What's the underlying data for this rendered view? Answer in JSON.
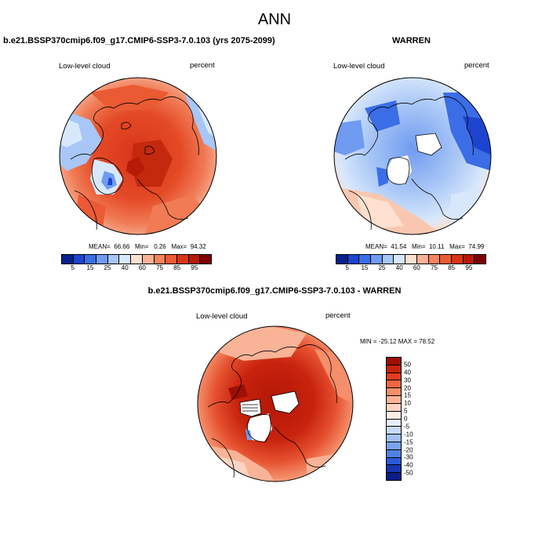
{
  "figure": {
    "title": "ANN",
    "panel_top_left": {
      "case_title": "b.e21.BSSP370cmip6.f09_g17.CMIP6-SSP3-7.0.103 (yrs 2075-2099)",
      "variable": "Low-level cloud",
      "units": "percent",
      "mean_label": "MEAN=",
      "mean": "66.66",
      "min_label": "Min=",
      "min": "0.26",
      "max_label": "Max=",
      "max": "94.32"
    },
    "panel_top_right": {
      "case_title": "WARREN",
      "variable": "Low-level cloud",
      "units": "percent",
      "mean_label": "MEAN=",
      "mean": "41.54",
      "min_label": "Min=",
      "min": "10.11",
      "max_label": "Max=",
      "max": "74.99"
    },
    "panel_bottom": {
      "case_title": "b.e21.BSSP370cmip6.f09_g17.CMIP6-SSP3-7.0.103 - WARREN",
      "variable": "Low-level cloud",
      "units": "percent",
      "minmax_text": "MIN = -25.12 MAX = 78.52"
    },
    "colorbar_abs": {
      "ticks": [
        "5",
        "15",
        "25",
        "40",
        "60",
        "75",
        "85",
        "95"
      ],
      "colors": [
        "#08218c",
        "#1d44cf",
        "#3a6de6",
        "#6f9bf0",
        "#a8c6f6",
        "#d8e8fc",
        "#fde0d0",
        "#f9b195",
        "#f3845f",
        "#ec5a35",
        "#d93516",
        "#b81a08",
        "#7f0000"
      ]
    },
    "colorbar_diff": {
      "ticks": [
        "50",
        "40",
        "30",
        "20",
        "15",
        "10",
        "5",
        "0",
        "-5",
        "-10",
        "-15",
        "-20",
        "-30",
        "-40",
        "-50"
      ],
      "colors": [
        "#9e0f04",
        "#c8230e",
        "#e23d1e",
        "#ef6641",
        "#f58e6a",
        "#f9b397",
        "#fdd4c3",
        "#fdeee6",
        "#e6effc",
        "#c7dbf8",
        "#a2c1f3",
        "#7aa4ee",
        "#4f82e6",
        "#2a5cd8",
        "#1535b4",
        "#081d86"
      ]
    }
  }
}
